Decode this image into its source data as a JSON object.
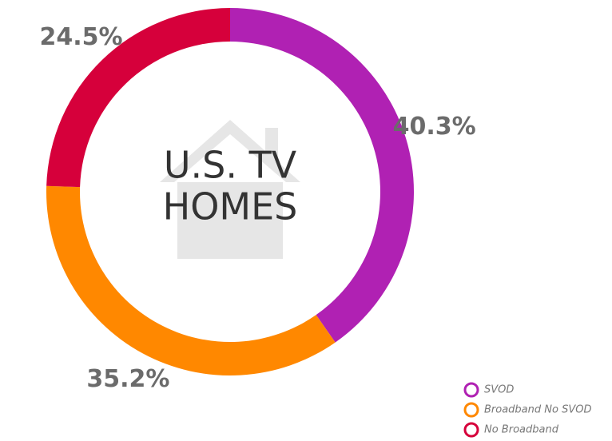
{
  "chart_data": {
    "type": "donut",
    "center_text": [
      "U.S. TV",
      "HOMES"
    ],
    "categories": [
      "SVOD",
      "Broadband No SVOD",
      "No Broadband"
    ],
    "values": [
      40.3,
      35.2,
      24.5
    ],
    "value_labels": [
      "40.3%",
      "35.2%",
      "24.5%"
    ],
    "colors": [
      "#b021b3",
      "#ff8800",
      "#d6003b"
    ]
  }
}
